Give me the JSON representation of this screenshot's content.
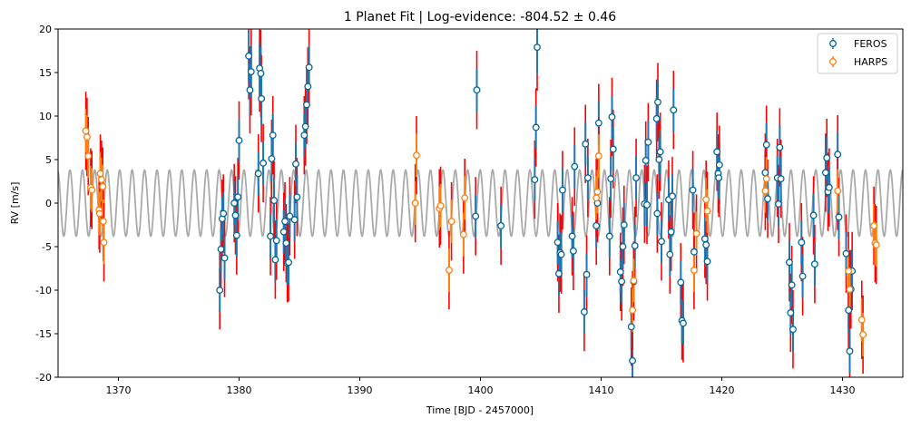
{
  "chart_data": {
    "type": "scatter",
    "title": "1 Planet Fit | Log-evidence: -804.52 ± 0.46",
    "xlabel": "Time [BJD - 2457000]",
    "ylabel": "RV [m/s]",
    "xlim": [
      1365,
      1435
    ],
    "ylim": [
      -20,
      20
    ],
    "xticks": [
      1370,
      1380,
      1390,
      1400,
      1410,
      1420,
      1430
    ],
    "yticks": [
      -20,
      -15,
      -10,
      -5,
      0,
      5,
      10,
      15,
      20
    ],
    "legend_position": "top-right",
    "model": {
      "kind": "sinusoid",
      "amplitude": 3.8,
      "period": 1.03,
      "phase": 0.3,
      "color": "#aaaaaa"
    },
    "jitter_color": "#ff0000",
    "series": [
      {
        "name": "FEROS",
        "color": "#1f77b4",
        "edge_color": "#006699",
        "points": [
          {
            "x": 1378.4,
            "y": -10.0,
            "e": 2.5,
            "j": 4.5
          },
          {
            "x": 1378.5,
            "y": -5.3,
            "e": 2.5,
            "j": 4.5
          },
          {
            "x": 1378.6,
            "y": -1.8,
            "e": 2.5,
            "j": 4.5
          },
          {
            "x": 1378.7,
            "y": -1.2,
            "e": 2.5,
            "j": 4.5
          },
          {
            "x": 1378.8,
            "y": -6.3,
            "e": 2.5,
            "j": 4.5
          },
          {
            "x": 1379.6,
            "y": 0.0,
            "e": 2.5,
            "j": 4.5
          },
          {
            "x": 1379.7,
            "y": -1.4,
            "e": 2.5,
            "j": 4.5
          },
          {
            "x": 1379.8,
            "y": -3.7,
            "e": 2.5,
            "j": 4.5
          },
          {
            "x": 1379.9,
            "y": 0.7,
            "e": 2.5,
            "j": 4.5
          },
          {
            "x": 1380.0,
            "y": 7.2,
            "e": 2.5,
            "j": 4.5
          },
          {
            "x": 1380.8,
            "y": 16.9,
            "e": 3.0,
            "j": 5.0
          },
          {
            "x": 1380.9,
            "y": 13.0,
            "e": 3.0,
            "j": 5.0
          },
          {
            "x": 1381.0,
            "y": 15.1,
            "e": 3.0,
            "j": 5.0
          },
          {
            "x": 1381.6,
            "y": 3.4,
            "e": 2.5,
            "j": 4.5
          },
          {
            "x": 1381.7,
            "y": 15.5,
            "e": 3.0,
            "j": 5.0
          },
          {
            "x": 1381.8,
            "y": 14.9,
            "e": 3.0,
            "j": 5.0
          },
          {
            "x": 1381.85,
            "y": 12.0,
            "e": 3.0,
            "j": 5.0
          },
          {
            "x": 1382.0,
            "y": 4.6,
            "e": 2.5,
            "j": 4.5
          },
          {
            "x": 1382.6,
            "y": -3.8,
            "e": 2.5,
            "j": 4.5
          },
          {
            "x": 1382.7,
            "y": 5.1,
            "e": 2.5,
            "j": 4.5
          },
          {
            "x": 1382.8,
            "y": 7.8,
            "e": 2.5,
            "j": 4.5
          },
          {
            "x": 1382.9,
            "y": 0.3,
            "e": 2.5,
            "j": 4.5
          },
          {
            "x": 1383.0,
            "y": -6.5,
            "e": 2.5,
            "j": 4.5
          },
          {
            "x": 1383.1,
            "y": -4.3,
            "e": 2.5,
            "j": 4.5
          },
          {
            "x": 1383.7,
            "y": -3.3,
            "e": 2.5,
            "j": 4.5
          },
          {
            "x": 1383.8,
            "y": -2.1,
            "e": 2.5,
            "j": 4.5
          },
          {
            "x": 1383.9,
            "y": -4.6,
            "e": 2.5,
            "j": 4.5
          },
          {
            "x": 1384.0,
            "y": -6.9,
            "e": 2.5,
            "j": 4.5
          },
          {
            "x": 1384.1,
            "y": -6.8,
            "e": 2.5,
            "j": 4.5
          },
          {
            "x": 1384.2,
            "y": -1.5,
            "e": 2.5,
            "j": 4.5
          },
          {
            "x": 1384.6,
            "y": -1.9,
            "e": 2.5,
            "j": 4.5
          },
          {
            "x": 1384.7,
            "y": 4.5,
            "e": 2.5,
            "j": 4.5
          },
          {
            "x": 1384.8,
            "y": 0.7,
            "e": 2.5,
            "j": 4.5
          },
          {
            "x": 1385.4,
            "y": 7.8,
            "e": 2.5,
            "j": 4.5
          },
          {
            "x": 1385.5,
            "y": 8.8,
            "e": 2.5,
            "j": 4.5
          },
          {
            "x": 1385.6,
            "y": 11.3,
            "e": 2.5,
            "j": 4.5
          },
          {
            "x": 1385.7,
            "y": 13.4,
            "e": 2.5,
            "j": 4.5
          },
          {
            "x": 1385.8,
            "y": 15.6,
            "e": 2.5,
            "j": 4.5
          },
          {
            "x": 1399.7,
            "y": 13.0,
            "e": 2.5,
            "j": 4.5
          },
          {
            "x": 1399.6,
            "y": -1.5,
            "e": 2.5,
            "j": 4.5
          },
          {
            "x": 1401.7,
            "y": -2.6,
            "e": 2.5,
            "j": 4.5
          },
          {
            "x": 1404.5,
            "y": 2.7,
            "e": 2.5,
            "j": 4.5
          },
          {
            "x": 1404.6,
            "y": 8.7,
            "e": 2.5,
            "j": 4.5
          },
          {
            "x": 1404.7,
            "y": 17.9,
            "e": 3.0,
            "j": 5.0
          },
          {
            "x": 1406.4,
            "y": -4.5,
            "e": 2.5,
            "j": 4.5
          },
          {
            "x": 1406.5,
            "y": -8.1,
            "e": 2.5,
            "j": 4.5
          },
          {
            "x": 1406.6,
            "y": -5.7,
            "e": 2.5,
            "j": 4.5
          },
          {
            "x": 1406.7,
            "y": -5.9,
            "e": 2.5,
            "j": 4.5
          },
          {
            "x": 1406.8,
            "y": 1.5,
            "e": 2.5,
            "j": 4.5
          },
          {
            "x": 1407.6,
            "y": -3.8,
            "e": 2.5,
            "j": 4.5
          },
          {
            "x": 1407.7,
            "y": -5.5,
            "e": 2.5,
            "j": 4.5
          },
          {
            "x": 1407.8,
            "y": 4.2,
            "e": 2.5,
            "j": 4.5
          },
          {
            "x": 1408.6,
            "y": -12.5,
            "e": 2.5,
            "j": 4.5
          },
          {
            "x": 1408.7,
            "y": 6.8,
            "e": 2.5,
            "j": 4.5
          },
          {
            "x": 1408.8,
            "y": -8.2,
            "e": 2.5,
            "j": 4.5
          },
          {
            "x": 1408.9,
            "y": 2.9,
            "e": 2.5,
            "j": 4.5
          },
          {
            "x": 1409.6,
            "y": -2.6,
            "e": 2.5,
            "j": 4.5
          },
          {
            "x": 1409.7,
            "y": 0.0,
            "e": 2.5,
            "j": 4.5
          },
          {
            "x": 1409.8,
            "y": 9.2,
            "e": 2.5,
            "j": 4.5
          },
          {
            "x": 1410.7,
            "y": -3.8,
            "e": 2.5,
            "j": 4.5
          },
          {
            "x": 1410.8,
            "y": 2.8,
            "e": 2.5,
            "j": 4.5
          },
          {
            "x": 1410.9,
            "y": 9.9,
            "e": 2.5,
            "j": 4.5
          },
          {
            "x": 1411.0,
            "y": 6.2,
            "e": 2.5,
            "j": 4.5
          },
          {
            "x": 1411.6,
            "y": -7.9,
            "e": 2.5,
            "j": 4.5
          },
          {
            "x": 1411.7,
            "y": -9.0,
            "e": 2.5,
            "j": 4.5
          },
          {
            "x": 1411.8,
            "y": -5.0,
            "e": 2.5,
            "j": 4.5
          },
          {
            "x": 1411.9,
            "y": -2.5,
            "e": 2.5,
            "j": 4.5
          },
          {
            "x": 1412.6,
            "y": -18.1,
            "e": 2.5,
            "j": 4.5
          },
          {
            "x": 1412.5,
            "y": -14.2,
            "e": 2.5,
            "j": 4.5
          },
          {
            "x": 1412.7,
            "y": -9.0,
            "e": 2.5,
            "j": 4.5
          },
          {
            "x": 1412.8,
            "y": -4.9,
            "e": 2.5,
            "j": 4.5
          },
          {
            "x": 1412.9,
            "y": 2.9,
            "e": 2.5,
            "j": 4.5
          },
          {
            "x": 1413.6,
            "y": -0.1,
            "e": 2.5,
            "j": 4.5
          },
          {
            "x": 1413.7,
            "y": 4.9,
            "e": 2.5,
            "j": 4.5
          },
          {
            "x": 1413.8,
            "y": -0.2,
            "e": 2.5,
            "j": 4.5
          },
          {
            "x": 1413.9,
            "y": 7.0,
            "e": 2.5,
            "j": 4.5
          },
          {
            "x": 1414.6,
            "y": 9.7,
            "e": 2.5,
            "j": 4.5
          },
          {
            "x": 1414.7,
            "y": 11.6,
            "e": 2.5,
            "j": 4.5
          },
          {
            "x": 1414.8,
            "y": 5.0,
            "e": 2.5,
            "j": 4.5
          },
          {
            "x": 1414.9,
            "y": 5.9,
            "e": 2.5,
            "j": 4.5
          },
          {
            "x": 1414.65,
            "y": -1.2,
            "e": 2.5,
            "j": 4.5
          },
          {
            "x": 1415.0,
            "y": -4.4,
            "e": 2.5,
            "j": 4.5
          },
          {
            "x": 1415.6,
            "y": 0.4,
            "e": 2.5,
            "j": 4.5
          },
          {
            "x": 1415.7,
            "y": -5.9,
            "e": 2.5,
            "j": 4.5
          },
          {
            "x": 1415.8,
            "y": -3.3,
            "e": 2.5,
            "j": 4.5
          },
          {
            "x": 1415.9,
            "y": 0.8,
            "e": 2.5,
            "j": 4.5
          },
          {
            "x": 1416.0,
            "y": 10.7,
            "e": 2.5,
            "j": 4.5
          },
          {
            "x": 1416.6,
            "y": -9.1,
            "e": 2.5,
            "j": 4.5
          },
          {
            "x": 1416.7,
            "y": -13.5,
            "e": 2.5,
            "j": 4.5
          },
          {
            "x": 1416.8,
            "y": -13.8,
            "e": 2.5,
            "j": 4.5
          },
          {
            "x": 1417.6,
            "y": 1.5,
            "e": 2.5,
            "j": 4.5
          },
          {
            "x": 1417.7,
            "y": -5.6,
            "e": 2.5,
            "j": 4.5
          },
          {
            "x": 1418.6,
            "y": -4.1,
            "e": 2.5,
            "j": 4.5
          },
          {
            "x": 1418.7,
            "y": -4.8,
            "e": 2.5,
            "j": 4.5
          },
          {
            "x": 1418.8,
            "y": -6.7,
            "e": 2.5,
            "j": 4.5
          },
          {
            "x": 1419.6,
            "y": 5.9,
            "e": 2.5,
            "j": 4.5
          },
          {
            "x": 1419.7,
            "y": 3.4,
            "e": 2.5,
            "j": 4.5
          },
          {
            "x": 1419.8,
            "y": 4.4,
            "e": 2.5,
            "j": 4.5
          },
          {
            "x": 1419.75,
            "y": 2.9,
            "e": 2.5,
            "j": 4.5
          },
          {
            "x": 1423.6,
            "y": 3.5,
            "e": 2.5,
            "j": 4.5
          },
          {
            "x": 1423.7,
            "y": 6.7,
            "e": 2.5,
            "j": 4.5
          },
          {
            "x": 1423.8,
            "y": 0.5,
            "e": 2.5,
            "j": 4.5
          },
          {
            "x": 1424.6,
            "y": 2.9,
            "e": 2.5,
            "j": 4.5
          },
          {
            "x": 1424.7,
            "y": -0.1,
            "e": 2.5,
            "j": 4.5
          },
          {
            "x": 1424.8,
            "y": 6.4,
            "e": 2.5,
            "j": 4.5
          },
          {
            "x": 1424.9,
            "y": 2.8,
            "e": 2.5,
            "j": 4.5
          },
          {
            "x": 1425.6,
            "y": -6.8,
            "e": 2.5,
            "j": 4.5
          },
          {
            "x": 1425.7,
            "y": -12.6,
            "e": 2.5,
            "j": 4.5
          },
          {
            "x": 1425.8,
            "y": -9.4,
            "e": 2.5,
            "j": 4.5
          },
          {
            "x": 1425.9,
            "y": -14.5,
            "e": 2.5,
            "j": 4.5
          },
          {
            "x": 1426.6,
            "y": -4.5,
            "e": 2.5,
            "j": 4.5
          },
          {
            "x": 1426.7,
            "y": -8.4,
            "e": 2.5,
            "j": 4.5
          },
          {
            "x": 1427.6,
            "y": -1.4,
            "e": 2.5,
            "j": 4.5
          },
          {
            "x": 1427.7,
            "y": -7.0,
            "e": 2.5,
            "j": 4.5
          },
          {
            "x": 1428.6,
            "y": 3.5,
            "e": 2.5,
            "j": 4.5
          },
          {
            "x": 1428.7,
            "y": 5.2,
            "e": 2.5,
            "j": 4.5
          },
          {
            "x": 1428.8,
            "y": 1.3,
            "e": 2.5,
            "j": 4.5
          },
          {
            "x": 1428.9,
            "y": 1.8,
            "e": 2.5,
            "j": 4.5
          },
          {
            "x": 1429.6,
            "y": 5.6,
            "e": 2.5,
            "j": 4.5
          },
          {
            "x": 1429.7,
            "y": -1.6,
            "e": 2.5,
            "j": 4.5
          },
          {
            "x": 1430.3,
            "y": -5.8,
            "e": 2.5,
            "j": 4.5
          },
          {
            "x": 1430.5,
            "y": -12.3,
            "e": 2.5,
            "j": 4.5
          },
          {
            "x": 1430.6,
            "y": -17.0,
            "e": 2.5,
            "j": 4.5
          },
          {
            "x": 1430.7,
            "y": -9.9,
            "e": 2.5,
            "j": 4.5
          },
          {
            "x": 1430.8,
            "y": -7.8,
            "e": 2.5,
            "j": 4.5
          }
        ]
      },
      {
        "name": "HARPS",
        "color": "#ff7f0e",
        "edge_color": "#ff7f0e",
        "points": [
          {
            "x": 1367.3,
            "y": 8.3,
            "e": 2.5,
            "j": 4.5
          },
          {
            "x": 1367.4,
            "y": 7.6,
            "e": 2.5,
            "j": 4.5
          },
          {
            "x": 1367.5,
            "y": 5.4,
            "e": 2.5,
            "j": 4.5
          },
          {
            "x": 1367.7,
            "y": 1.8,
            "e": 2.5,
            "j": 4.5
          },
          {
            "x": 1367.8,
            "y": 1.5,
            "e": 2.5,
            "j": 4.5
          },
          {
            "x": 1368.4,
            "y": -0.8,
            "e": 2.5,
            "j": 4.5
          },
          {
            "x": 1368.5,
            "y": 3.4,
            "e": 2.5,
            "j": 4.5
          },
          {
            "x": 1368.6,
            "y": 2.7,
            "e": 2.5,
            "j": 4.5
          },
          {
            "x": 1368.7,
            "y": 1.9,
            "e": 2.5,
            "j": 4.5
          },
          {
            "x": 1368.75,
            "y": -2.1,
            "e": 2.5,
            "j": 4.5
          },
          {
            "x": 1368.8,
            "y": -4.5,
            "e": 2.5,
            "j": 4.5
          },
          {
            "x": 1368.45,
            "y": -1.2,
            "e": 2.5,
            "j": 4.5
          },
          {
            "x": 1394.6,
            "y": 0.0,
            "e": 2.5,
            "j": 4.5
          },
          {
            "x": 1394.7,
            "y": 5.5,
            "e": 2.5,
            "j": 4.5
          },
          {
            "x": 1396.6,
            "y": -0.6,
            "e": 2.5,
            "j": 4.5
          },
          {
            "x": 1396.7,
            "y": -0.3,
            "e": 2.5,
            "j": 4.5
          },
          {
            "x": 1397.4,
            "y": -7.7,
            "e": 2.5,
            "j": 4.5
          },
          {
            "x": 1397.6,
            "y": -2.1,
            "e": 2.5,
            "j": 4.5
          },
          {
            "x": 1398.6,
            "y": -3.6,
            "e": 2.5,
            "j": 4.5
          },
          {
            "x": 1398.7,
            "y": 0.6,
            "e": 2.5,
            "j": 4.5
          },
          {
            "x": 1409.6,
            "y": 0.6,
            "e": 2.5,
            "j": 4.5
          },
          {
            "x": 1409.7,
            "y": 1.3,
            "e": 2.5,
            "j": 4.5
          },
          {
            "x": 1409.8,
            "y": 5.4,
            "e": 2.5,
            "j": 4.5
          },
          {
            "x": 1412.6,
            "y": -12.3,
            "e": 2.5,
            "j": 4.5
          },
          {
            "x": 1412.7,
            "y": -8.9,
            "e": 2.5,
            "j": 4.5
          },
          {
            "x": 1417.7,
            "y": -7.7,
            "e": 2.5,
            "j": 4.5
          },
          {
            "x": 1417.9,
            "y": -3.5,
            "e": 2.5,
            "j": 4.5
          },
          {
            "x": 1418.7,
            "y": 0.4,
            "e": 2.5,
            "j": 4.5
          },
          {
            "x": 1418.8,
            "y": -0.9,
            "e": 2.5,
            "j": 4.5
          },
          {
            "x": 1423.6,
            "y": 1.4,
            "e": 2.5,
            "j": 4.5
          },
          {
            "x": 1423.7,
            "y": 2.8,
            "e": 2.5,
            "j": 4.5
          },
          {
            "x": 1429.6,
            "y": 1.4,
            "e": 2.5,
            "j": 4.5
          },
          {
            "x": 1430.5,
            "y": -7.8,
            "e": 2.5,
            "j": 4.5
          },
          {
            "x": 1430.6,
            "y": -9.9,
            "e": 2.5,
            "j": 4.5
          },
          {
            "x": 1431.6,
            "y": -13.4,
            "e": 2.5,
            "j": 4.5
          },
          {
            "x": 1431.7,
            "y": -15.1,
            "e": 2.5,
            "j": 4.5
          },
          {
            "x": 1432.6,
            "y": -2.6,
            "e": 2.5,
            "j": 4.5
          },
          {
            "x": 1432.7,
            "y": -4.6,
            "e": 2.5,
            "j": 4.5
          },
          {
            "x": 1432.8,
            "y": -4.8,
            "e": 2.5,
            "j": 4.5
          }
        ]
      }
    ]
  }
}
